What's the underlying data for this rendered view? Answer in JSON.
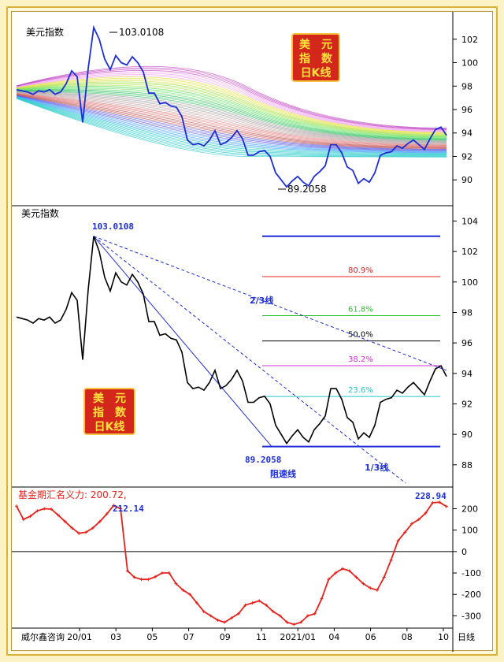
{
  "footer": {
    "source": "威尔鑫咨询",
    "period": "日线"
  },
  "colors": {
    "price": "#000000",
    "indicator": "#e8211b",
    "label_blue": "#1d2ed6",
    "badge_fill": "#d4271c",
    "badge_text": "#ffe23a",
    "badge_border": "#f5c542"
  },
  "badge": {
    "line1": "美　元",
    "line2": "指　数",
    "line3": "日K线"
  },
  "chart_data": [
    {
      "type": "line",
      "title": "美元指数",
      "subtitle": "",
      "series": [
        {
          "name": "美元指数",
          "values": [
            97.7,
            97.6,
            97.5,
            97.3,
            97.6,
            97.5,
            97.7,
            97.3,
            97.5,
            98.2,
            99.3,
            98.8,
            94.9,
            99.5,
            103.0,
            102.0,
            100.3,
            99.4,
            100.6,
            100.0,
            99.8,
            100.5,
            100.0,
            99.2,
            97.4,
            97.4,
            96.5,
            96.6,
            96.3,
            96.2,
            95.4,
            93.4,
            93.0,
            93.1,
            92.9,
            93.4,
            94.2,
            93.0,
            93.2,
            93.6,
            94.2,
            93.5,
            92.1,
            92.1,
            92.4,
            92.5,
            92.0,
            90.6,
            90.0,
            89.4,
            89.9,
            90.3,
            89.8,
            89.5,
            90.3,
            90.7,
            91.2,
            93.0,
            93.0,
            92.3,
            91.1,
            90.8,
            89.7,
            90.1,
            89.8,
            90.6,
            92.1,
            92.3,
            92.4,
            92.9,
            92.7,
            93.1,
            93.4,
            93.0,
            92.6,
            93.5,
            94.3,
            94.5,
            93.8
          ]
        }
      ],
      "annotations": [
        "103.0108",
        "89.2058"
      ],
      "y_ticks": [
        "102",
        "100",
        "98",
        "96",
        "94",
        "92",
        "90"
      ],
      "ylim": [
        88.2,
        103.8
      ],
      "note": "moving average ribbon"
    },
    {
      "type": "line",
      "title": "美元指数",
      "subtitle": "",
      "series": [
        {
          "name": "美元指数",
          "values": [
            97.7,
            97.6,
            97.5,
            97.3,
            97.6,
            97.5,
            97.7,
            97.3,
            97.5,
            98.2,
            99.3,
            98.8,
            94.9,
            99.5,
            103.0,
            102.0,
            100.3,
            99.4,
            100.6,
            100.0,
            99.8,
            100.5,
            100.0,
            99.2,
            97.4,
            97.4,
            96.5,
            96.6,
            96.3,
            96.2,
            95.4,
            93.4,
            93.0,
            93.1,
            92.9,
            93.4,
            94.2,
            93.0,
            93.2,
            93.6,
            94.2,
            93.5,
            92.1,
            92.1,
            92.4,
            92.5,
            92.0,
            90.6,
            90.0,
            89.4,
            89.9,
            90.3,
            89.8,
            89.5,
            90.3,
            90.7,
            91.2,
            93.0,
            93.0,
            92.3,
            91.1,
            90.8,
            89.7,
            90.1,
            89.8,
            90.6,
            92.1,
            92.3,
            92.4,
            92.9,
            92.7,
            93.1,
            93.4,
            93.0,
            92.6,
            93.5,
            94.3,
            94.5,
            93.8
          ]
        }
      ],
      "high_label": "103.0108",
      "low_label": "89.2058",
      "fib_levels": [
        {
          "label": "",
          "value": 103.0,
          "color": "#1d2ed6"
        },
        {
          "label": "80.9%",
          "value": 100.35,
          "color": "#e8211b"
        },
        {
          "label": "61.8%",
          "value": 97.79,
          "color": "#2fc02f"
        },
        {
          "label": "50.0%",
          "value": 96.13,
          "color": "#000000"
        },
        {
          "label": "38.2%",
          "value": 94.51,
          "color": "#d430d4"
        },
        {
          "label": "23.6%",
          "value": 92.48,
          "color": "#20c8c8"
        },
        {
          "label": "",
          "value": 89.2,
          "color": "#1d2ed6"
        }
      ],
      "speed_lines": [
        "2/3线",
        "1/3线",
        "阻速线"
      ],
      "y_ticks": [
        "104",
        "102",
        "100",
        "98",
        "96",
        "94",
        "92",
        "90",
        "88"
      ],
      "ylim": [
        86.8,
        104.8
      ]
    },
    {
      "type": "line",
      "title": "基金期汇名义力: 200.72,",
      "subtitle": "",
      "series": [
        {
          "name": "基金期汇名义力",
          "values": [
            212,
            150,
            165,
            190,
            200,
            198,
            170,
            140,
            110,
            85,
            90,
            110,
            140,
            175,
            215,
            200,
            -90,
            -120,
            -130,
            -130,
            -118,
            -100,
            -100,
            -150,
            -180,
            -200,
            -240,
            -280,
            -300,
            -320,
            -330,
            -310,
            -290,
            -250,
            -240,
            -230,
            -250,
            -280,
            -300,
            -330,
            -340,
            -330,
            -300,
            -290,
            -220,
            -130,
            -100,
            -80,
            -90,
            -120,
            -150,
            -170,
            -180,
            -120,
            -40,
            50,
            90,
            130,
            150,
            180,
            228,
            230,
            210
          ]
        }
      ],
      "annotations": [
        "212.14",
        "228.94"
      ],
      "y_ticks": [
        "200",
        "100",
        "0",
        "-100",
        "-200",
        "-300"
      ],
      "ylim": [
        -350,
        290
      ],
      "x_ticks": [
        "20/01",
        "03",
        "05",
        "07",
        "09",
        "11",
        "2021/01",
        "04",
        "06",
        "08",
        "10"
      ]
    }
  ]
}
